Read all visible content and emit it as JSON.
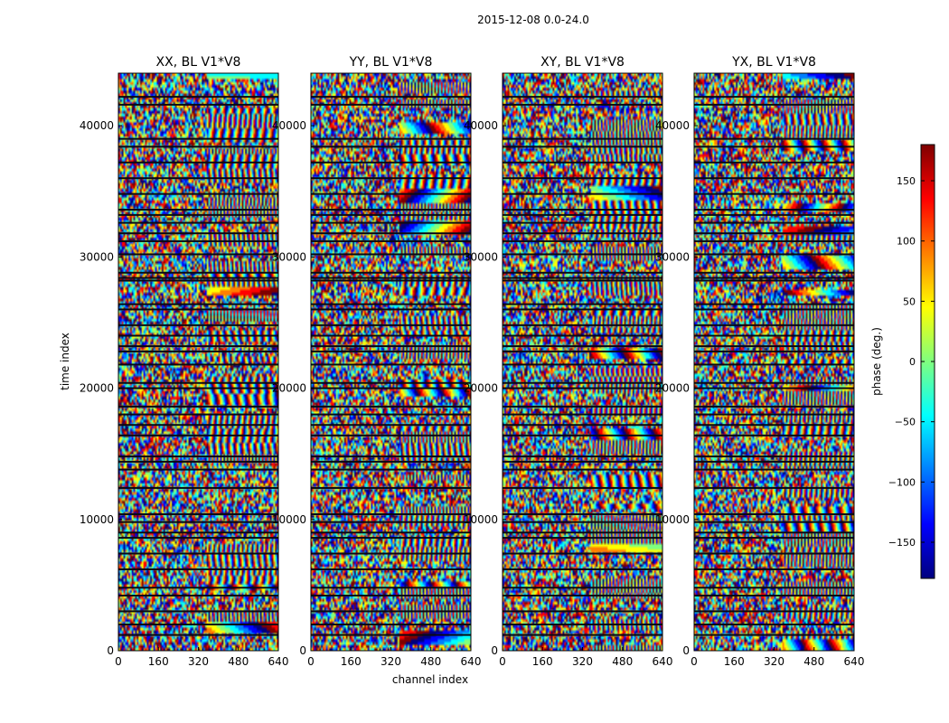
{
  "figure": {
    "suptitle": "2015-12-08 0.0-24.0"
  },
  "chart_data": {
    "type": "heatmap",
    "title": "2015-12-08 0.0-24.0",
    "xlabel": "channel index",
    "ylabel": "time index",
    "xlim": [
      0,
      640
    ],
    "ylim": [
      0,
      44000
    ],
    "x_ticks": [
      0,
      160,
      320,
      480,
      640
    ],
    "y_ticks": [
      0,
      10000,
      20000,
      30000,
      40000
    ],
    "colormap": "jet",
    "colorbar": {
      "label": "phase (deg.)",
      "range": [
        -180,
        180
      ],
      "ticks": [
        -150,
        -100,
        -50,
        0,
        50,
        100,
        150
      ]
    },
    "panels": [
      {
        "title": "XX, BL V1*V8",
        "seed": 11
      },
      {
        "title": "YY, BL V1*V8",
        "seed": 23
      },
      {
        "title": "XY, BL V1*V8",
        "seed": 37
      },
      {
        "title": "YX, BL V1*V8",
        "seed": 53
      }
    ],
    "gap_rows_time_index": [
      42200,
      41600,
      39000,
      38400,
      37200,
      36000,
      34800,
      33600,
      33200,
      32600,
      31800,
      31200,
      30200,
      28800,
      28400,
      28200,
      26400,
      26000,
      24800,
      24000,
      23200,
      22800,
      21800,
      20400,
      20000,
      18600,
      18000,
      17200,
      16400,
      14800,
      14400,
      13800,
      12400,
      10400,
      9800,
      9000,
      8600,
      7400,
      6200,
      4800,
      4200,
      3000,
      2000,
      1200
    ]
  },
  "colors": {
    "jet": [
      "#00007f",
      "#0000ff",
      "#007fff",
      "#00ffff",
      "#7fff7f",
      "#ffff00",
      "#ff7f00",
      "#ff0000",
      "#7f0000"
    ],
    "axis": "#000000",
    "gap": "#0a0a14"
  }
}
